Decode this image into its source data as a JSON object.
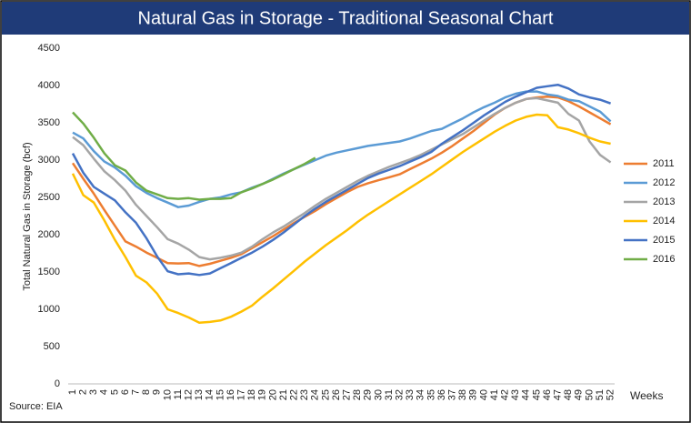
{
  "chart_data": {
    "type": "line",
    "title": "Natural Gas in Storage - Traditional Seasonal Chart",
    "y_label": "Total Natural Gas in Storage (bcf)",
    "x_label": "Weeks",
    "source": "Source: EIA",
    "categories": [
      "1",
      "2",
      "3",
      "4",
      "5",
      "6",
      "7",
      "8",
      "9",
      "10",
      "11",
      "12",
      "13",
      "14",
      "15",
      "16",
      "17",
      "18",
      "19",
      "20",
      "21",
      "22",
      "23",
      "24",
      "25",
      "26",
      "27",
      "28",
      "29",
      "30",
      "31",
      "32",
      "33",
      "34",
      "35",
      "36",
      "37",
      "38",
      "39",
      "40",
      "41",
      "42",
      "43",
      "44",
      "45",
      "46",
      "47",
      "48",
      "49",
      "50",
      "51",
      "52"
    ],
    "ylim": [
      0,
      4500
    ],
    "yticks": [
      0,
      500,
      1000,
      1500,
      2000,
      2500,
      3000,
      3500,
      4000,
      4500
    ],
    "grid": false,
    "legend": "right",
    "series": [
      {
        "name": "2011",
        "color": "#ed7d31",
        "values": [
          2960,
          2750,
          2550,
          2330,
          2120,
          1910,
          1840,
          1760,
          1690,
          1620,
          1615,
          1620,
          1580,
          1610,
          1650,
          1690,
          1740,
          1820,
          1900,
          1980,
          2070,
          2160,
          2240,
          2320,
          2410,
          2490,
          2570,
          2640,
          2690,
          2730,
          2770,
          2810,
          2880,
          2950,
          3020,
          3100,
          3190,
          3290,
          3390,
          3500,
          3610,
          3700,
          3770,
          3820,
          3840,
          3850,
          3840,
          3790,
          3720,
          3640,
          3560,
          3480
        ]
      },
      {
        "name": "2012",
        "color": "#5b9bd5",
        "values": [
          3370,
          3290,
          3120,
          2980,
          2900,
          2790,
          2650,
          2560,
          2490,
          2430,
          2370,
          2390,
          2440,
          2480,
          2500,
          2540,
          2570,
          2630,
          2680,
          2750,
          2820,
          2880,
          2940,
          3000,
          3060,
          3100,
          3130,
          3160,
          3190,
          3210,
          3230,
          3250,
          3290,
          3340,
          3390,
          3420,
          3490,
          3560,
          3640,
          3710,
          3770,
          3840,
          3890,
          3920,
          3920,
          3880,
          3860,
          3810,
          3790,
          3720,
          3650,
          3520
        ]
      },
      {
        "name": "2013",
        "color": "#a5a5a5",
        "values": [
          3310,
          3200,
          3020,
          2850,
          2730,
          2590,
          2400,
          2250,
          2100,
          1940,
          1880,
          1800,
          1700,
          1670,
          1690,
          1720,
          1760,
          1840,
          1940,
          2030,
          2110,
          2200,
          2290,
          2390,
          2480,
          2560,
          2640,
          2720,
          2790,
          2850,
          2910,
          2960,
          3010,
          3070,
          3140,
          3210,
          3280,
          3350,
          3440,
          3530,
          3620,
          3700,
          3770,
          3820,
          3830,
          3800,
          3770,
          3620,
          3530,
          3250,
          3070,
          2970
        ]
      },
      {
        "name": "2014",
        "color": "#ffc000",
        "values": [
          2820,
          2530,
          2430,
          2190,
          1930,
          1700,
          1450,
          1360,
          1210,
          1000,
          950,
          890,
          820,
          830,
          850,
          900,
          970,
          1050,
          1170,
          1280,
          1400,
          1520,
          1640,
          1750,
          1860,
          1960,
          2060,
          2170,
          2270,
          2360,
          2450,
          2540,
          2630,
          2720,
          2810,
          2910,
          3010,
          3110,
          3200,
          3290,
          3380,
          3460,
          3530,
          3580,
          3610,
          3600,
          3440,
          3410,
          3360,
          3300,
          3250,
          3220
        ]
      },
      {
        "name": "2015",
        "color": "#4472c4",
        "values": [
          3090,
          2830,
          2640,
          2550,
          2460,
          2300,
          2160,
          1950,
          1710,
          1510,
          1470,
          1480,
          1460,
          1480,
          1550,
          1620,
          1690,
          1760,
          1840,
          1930,
          2030,
          2140,
          2250,
          2350,
          2440,
          2520,
          2600,
          2680,
          2760,
          2820,
          2870,
          2920,
          2980,
          3040,
          3110,
          3220,
          3310,
          3400,
          3500,
          3600,
          3690,
          3780,
          3850,
          3910,
          3970,
          3990,
          4010,
          3960,
          3880,
          3840,
          3810,
          3760
        ]
      },
      {
        "name": "2016",
        "color": "#70ad47",
        "values": [
          3640,
          3490,
          3300,
          3090,
          2930,
          2860,
          2700,
          2590,
          2540,
          2490,
          2480,
          2490,
          2470,
          2480,
          2480,
          2490,
          2570,
          2620,
          2680,
          2740,
          2810,
          2880,
          2950,
          3030,
          null,
          null,
          null,
          null,
          null,
          null,
          null,
          null,
          null,
          null,
          null,
          null,
          null,
          null,
          null,
          null,
          null,
          null,
          null,
          null,
          null,
          null,
          null,
          null,
          null,
          null,
          null,
          null
        ]
      }
    ]
  }
}
